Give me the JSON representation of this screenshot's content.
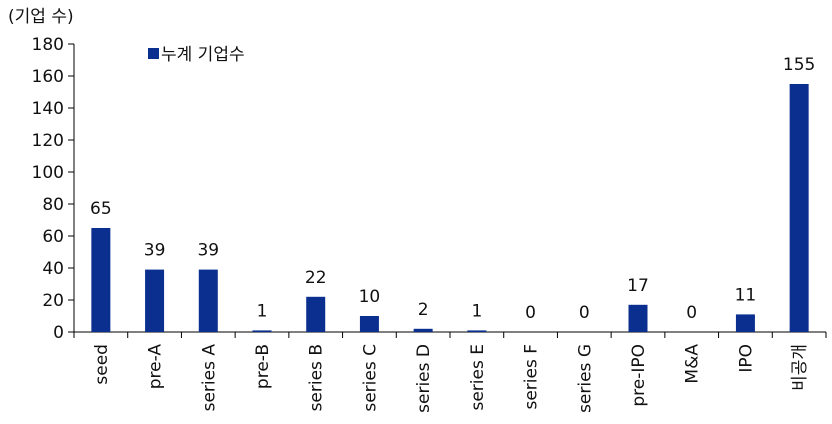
{
  "chart_data": {
    "type": "bar",
    "unit_label": "(기업 수)",
    "categories": [
      "seed",
      "pre-A",
      "series A",
      "pre-B",
      "series B",
      "series C",
      "series D",
      "series E",
      "series F",
      "series G",
      "pre-IPO",
      "M&A",
      "IPO",
      "비공개"
    ],
    "series": [
      {
        "name": "누계 기업수",
        "color": "#0a2f8f",
        "values": [
          65,
          39,
          39,
          1,
          22,
          10,
          2,
          1,
          0,
          0,
          17,
          0,
          11,
          155
        ]
      }
    ],
    "ylim": [
      0,
      180
    ],
    "yticks": [
      0,
      20,
      40,
      60,
      80,
      100,
      120,
      140,
      160,
      180
    ],
    "grid": false,
    "legend_position": "top-left"
  }
}
